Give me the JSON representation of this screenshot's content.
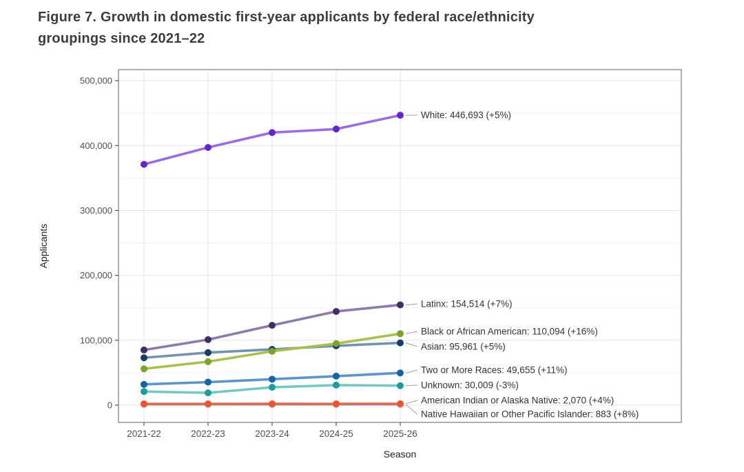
{
  "header": {
    "title_line1": "Figure 7. Growth in domestic first-year applicants by federal race/ethnicity",
    "title_line2": "groupings since 2021–22"
  },
  "chart_data": {
    "type": "line",
    "title": "Figure 7. Growth in domestic first-year applicants by federal race/ethnicity groupings since 2021–22",
    "xlabel": "Season",
    "ylabel": "Applicants",
    "categories": [
      "2021-22",
      "2022-23",
      "2023-24",
      "2024-25",
      "2025-26"
    ],
    "ylim": [
      0,
      500000
    ],
    "yticks": [
      0,
      100000,
      200000,
      300000,
      400000,
      500000
    ],
    "ytick_labels": [
      "0",
      "100,000",
      "200,000",
      "300,000",
      "400,000",
      "500,000"
    ],
    "ytick_minor": [
      50000,
      150000,
      250000,
      350000,
      450000
    ],
    "grid": "horizontal major+minor, vertical major only, light gray on white panel",
    "legend": "direct labels at right ends of lines with gray leader lines",
    "panel_border_color": "#7d7d7d",
    "gridline_major_color": "#e4e4e4",
    "gridline_minor_color": "#f1f1f1",
    "leader_line_color": "#a0a0a0",
    "axis_text_color": "#4f4f4f",
    "axis_title_color": "#1f1f1f",
    "label_text_color": "#333333",
    "series": [
      {
        "name": "White",
        "label": "White: 446,693 (+5%)",
        "line_color": "#9b6ee0",
        "marker_color": "#6426c9",
        "values": [
          371000,
          397000,
          420000,
          425400,
          446693
        ]
      },
      {
        "name": "Latinx",
        "label": "Latinx: 154,514 (+7%)",
        "line_color": "#8d7cab",
        "marker_color": "#442d63",
        "values": [
          85000,
          101000,
          123000,
          144400,
          154514
        ]
      },
      {
        "name": "Black or African American",
        "label": "Black or African American: 110,094 (+16%)",
        "line_color": "#a8c050",
        "marker_color": "#7da32b",
        "values": [
          56000,
          67000,
          83000,
          94900,
          110094
        ]
      },
      {
        "name": "Asian",
        "label": "Asian: 95,961 (+5%)",
        "line_color": "#7592ac",
        "marker_color": "#123f66",
        "values": [
          73000,
          81000,
          86000,
          91400,
          95961
        ]
      },
      {
        "name": "Two or More Races",
        "label": "Two or More Races: 49,655 (+11%)",
        "line_color": "#5f95c6",
        "marker_color": "#1264a4",
        "values": [
          32000,
          35500,
          40000,
          44700,
          49655
        ]
      },
      {
        "name": "Unknown",
        "label": "Unknown: 30,009 (-3%)",
        "line_color": "#78c7c3",
        "marker_color": "#1f9c9c",
        "values": [
          21000,
          19000,
          27500,
          30900,
          30009
        ]
      },
      {
        "name": "American Indian or Alaska Native",
        "label": "American Indian or Alaska Native: 2,070 (+4%)",
        "line_color": "#dc6a52",
        "marker_color": "#f1512b",
        "values": [
          1990,
          2000,
          2010,
          1990,
          2070
        ]
      },
      {
        "name": "Native Hawaiian or Other Pacific Islander",
        "label": "Native Hawaiian or Other Pacific Islander: 883 (+8%)",
        "line_color": "#a9c8e4",
        "marker_color": "#a9c8e4",
        "values": [
          820,
          810,
          830,
          818,
          883
        ]
      }
    ]
  }
}
